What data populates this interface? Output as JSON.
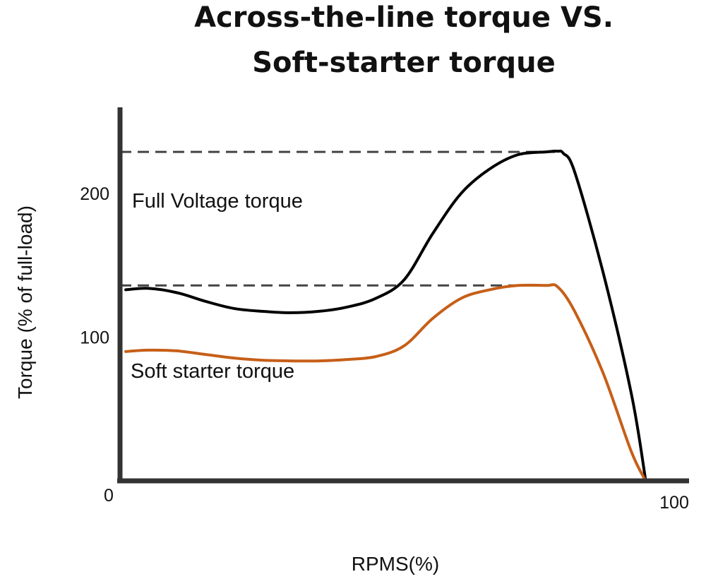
{
  "chart_data": {
    "type": "line",
    "title_lines": [
      "Across-the-line torque VS.",
      "Soft-starter torque"
    ],
    "xlabel": "RPMS(%)",
    "ylabel": "Torque (% of full-load)",
    "xlim": [
      0,
      100
    ],
    "ylim": [
      0,
      260
    ],
    "x_tick_labels": [
      "0",
      "100"
    ],
    "y_ticks": [
      100,
      200
    ],
    "grid": false,
    "legend": "none",
    "annotations": {
      "full_voltage": "Full Voltage torque",
      "soft_starter": "Soft starter torque"
    },
    "reference_lines": [
      {
        "y": 229,
        "x_end": 77.5
      },
      {
        "y": 136,
        "x_end": 74.9
      }
    ],
    "series": [
      {
        "color": "#000000",
        "points": [
          [
            1,
            133
          ],
          [
            5,
            134
          ],
          [
            10,
            131
          ],
          [
            15,
            125
          ],
          [
            20,
            120
          ],
          [
            25,
            118
          ],
          [
            30,
            117
          ],
          [
            35,
            118
          ],
          [
            40,
            121
          ],
          [
            45,
            127
          ],
          [
            50,
            140
          ],
          [
            55,
            172
          ],
          [
            60,
            200
          ],
          [
            65,
            217
          ],
          [
            70,
            227
          ],
          [
            75,
            229
          ],
          [
            77,
            229.5
          ],
          [
            78,
            228
          ],
          [
            80,
            215
          ],
          [
            85,
            145
          ],
          [
            90,
            60
          ],
          [
            92.5,
            0
          ]
        ]
      },
      {
        "color": "#C65F18",
        "points": [
          [
            1,
            90
          ],
          [
            5,
            91
          ],
          [
            10,
            90.5
          ],
          [
            15,
            88
          ],
          [
            20,
            85.5
          ],
          [
            25,
            84
          ],
          [
            30,
            83.5
          ],
          [
            35,
            83.5
          ],
          [
            40,
            84.5
          ],
          [
            45,
            86.5
          ],
          [
            50,
            94
          ],
          [
            55,
            113
          ],
          [
            60,
            127
          ],
          [
            65,
            133
          ],
          [
            70,
            136
          ],
          [
            75,
            136
          ],
          [
            77,
            135
          ],
          [
            80,
            118
          ],
          [
            85,
            75
          ],
          [
            90,
            20
          ],
          [
            92.5,
            0
          ]
        ]
      }
    ]
  }
}
